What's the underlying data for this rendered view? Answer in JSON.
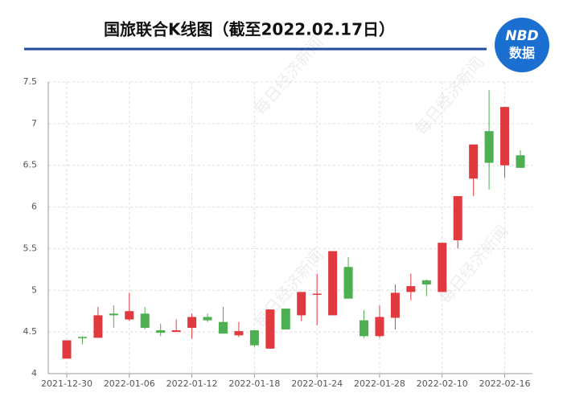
{
  "chart_data": {
    "type": "candlestick",
    "title": "国旅联合K线图（截至2022.02.17日）",
    "logo": {
      "top": "NBD",
      "bottom": "数据"
    },
    "watermark": "每日经济新闻",
    "categories": [
      "2021-12-30",
      null,
      null,
      null,
      "2022-01-06",
      null,
      null,
      null,
      "2022-01-12",
      null,
      null,
      null,
      "2022-01-18",
      null,
      null,
      null,
      "2022-01-24",
      null,
      null,
      null,
      "2022-01-28",
      null,
      null,
      null,
      "2022-02-10",
      null,
      null,
      null,
      "2022-02-16",
      null
    ],
    "open": [
      4.18,
      4.44,
      4.43,
      4.72,
      4.65,
      4.72,
      4.52,
      4.5,
      4.55,
      4.68,
      4.62,
      4.46,
      4.52,
      4.3,
      4.78,
      4.7,
      4.95,
      4.7,
      5.28,
      4.64,
      4.45,
      4.67,
      4.98,
      5.12,
      4.98,
      5.6,
      6.34,
      6.91,
      6.5,
      6.62
    ],
    "high": [
      4.4,
      4.45,
      4.8,
      4.82,
      4.97,
      4.8,
      4.6,
      4.65,
      4.72,
      4.72,
      4.8,
      4.62,
      4.52,
      4.77,
      4.78,
      4.98,
      5.2,
      5.47,
      5.4,
      4.76,
      4.82,
      5.07,
      5.2,
      5.13,
      5.57,
      6.13,
      6.75,
      7.4,
      7.2,
      6.68
    ],
    "low": [
      4.18,
      4.35,
      4.43,
      4.55,
      4.63,
      4.53,
      4.45,
      4.5,
      4.42,
      4.62,
      4.48,
      4.44,
      4.32,
      4.3,
      4.53,
      4.63,
      4.58,
      4.7,
      4.9,
      4.43,
      4.43,
      4.53,
      4.88,
      4.93,
      4.98,
      5.5,
      6.13,
      6.21,
      6.35,
      6.47
    ],
    "close": [
      4.4,
      4.43,
      4.7,
      4.7,
      4.75,
      4.55,
      4.49,
      4.52,
      4.68,
      4.64,
      4.48,
      4.51,
      4.34,
      4.77,
      4.53,
      4.98,
      4.96,
      5.47,
      4.9,
      4.45,
      4.68,
      4.97,
      5.05,
      5.07,
      5.57,
      6.13,
      6.75,
      6.53,
      7.2,
      6.47
    ],
    "up_color": "#e0393e",
    "down_color": "#4caf50",
    "ylim": [
      4,
      7.5
    ],
    "yticks": [
      4,
      4.5,
      5,
      5.5,
      6,
      6.5,
      7,
      7.5
    ],
    "grid": true
  }
}
